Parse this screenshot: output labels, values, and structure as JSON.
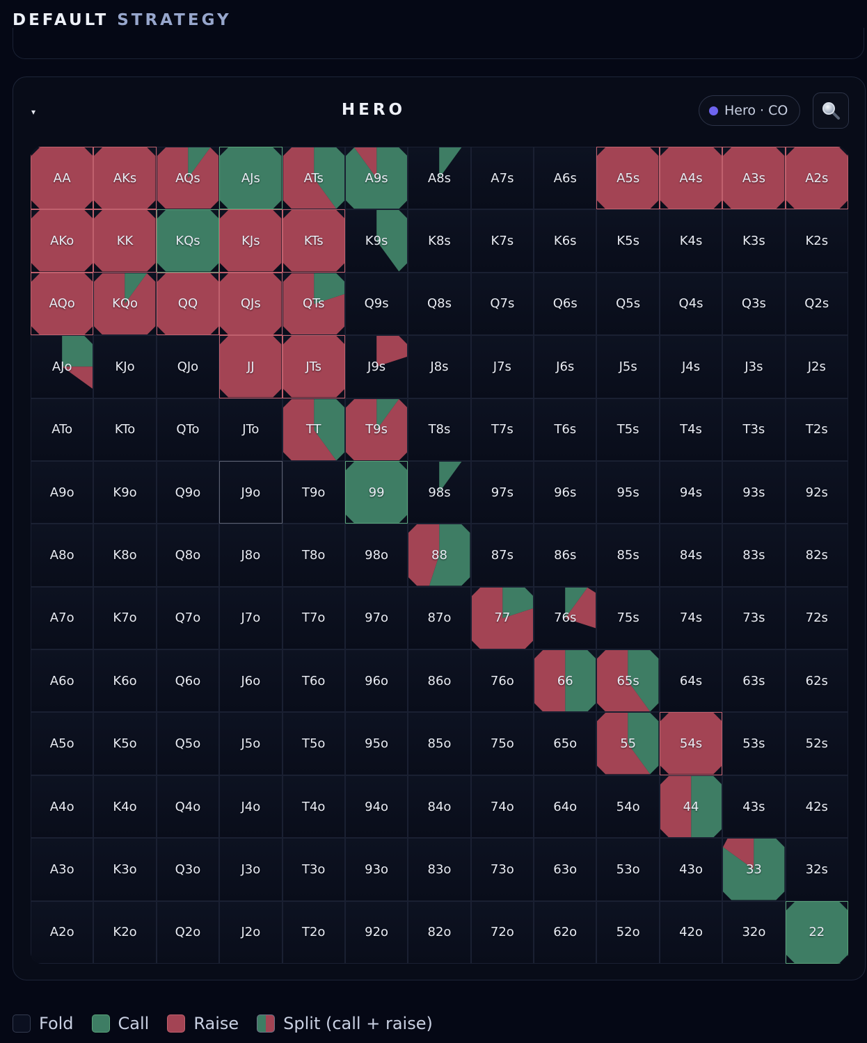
{
  "page": {
    "heading_word1": "DEFAULT",
    "heading_word2": "STRATEGY"
  },
  "panel": {
    "collapse_glyph": "▾",
    "title": "HERO",
    "player_chip": "Hero · CO",
    "player_color": "#6e64ee",
    "search_icon": "magnifying-glass-icon"
  },
  "colors": {
    "fold": "#0b1020",
    "call": "#3e7d64",
    "raise": "#a34454"
  },
  "matrix": {
    "rows": [
      [
        "AA",
        "AKs",
        "AQs",
        "AJs",
        "ATs",
        "A9s",
        "A8s",
        "A7s",
        "A6s",
        "A5s",
        "A4s",
        "A3s",
        "A2s"
      ],
      [
        "AKo",
        "KK",
        "KQs",
        "KJs",
        "KTs",
        "K9s",
        "K8s",
        "K7s",
        "K6s",
        "K5s",
        "K4s",
        "K3s",
        "K2s"
      ],
      [
        "AQo",
        "KQo",
        "QQ",
        "QJs",
        "QTs",
        "Q9s",
        "Q8s",
        "Q7s",
        "Q6s",
        "Q5s",
        "Q4s",
        "Q3s",
        "Q2s"
      ],
      [
        "AJo",
        "KJo",
        "QJo",
        "JJ",
        "JTs",
        "J9s",
        "J8s",
        "J7s",
        "J6s",
        "J5s",
        "J4s",
        "J3s",
        "J2s"
      ],
      [
        "ATo",
        "KTo",
        "QTo",
        "JTo",
        "TT",
        "T9s",
        "T8s",
        "T7s",
        "T6s",
        "T5s",
        "T4s",
        "T3s",
        "T2s"
      ],
      [
        "A9o",
        "K9o",
        "Q9o",
        "J9o",
        "T9o",
        "99",
        "98s",
        "97s",
        "96s",
        "95s",
        "94s",
        "93s",
        "92s"
      ],
      [
        "A8o",
        "K8o",
        "Q8o",
        "J8o",
        "T8o",
        "98o",
        "88",
        "87s",
        "86s",
        "85s",
        "84s",
        "83s",
        "82s"
      ],
      [
        "A7o",
        "K7o",
        "Q7o",
        "J7o",
        "T7o",
        "97o",
        "87o",
        "77",
        "76s",
        "75s",
        "74s",
        "73s",
        "72s"
      ],
      [
        "A6o",
        "K6o",
        "Q6o",
        "J6o",
        "T6o",
        "96o",
        "86o",
        "76o",
        "66",
        "65s",
        "64s",
        "63s",
        "62s"
      ],
      [
        "A5o",
        "K5o",
        "Q5o",
        "J5o",
        "T5o",
        "95o",
        "85o",
        "75o",
        "65o",
        "55",
        "54s",
        "53s",
        "52s"
      ],
      [
        "A4o",
        "K4o",
        "Q4o",
        "J4o",
        "T4o",
        "94o",
        "84o",
        "74o",
        "64o",
        "54o",
        "44",
        "43s",
        "42s"
      ],
      [
        "A3o",
        "K3o",
        "Q3o",
        "J3o",
        "T3o",
        "93o",
        "83o",
        "73o",
        "63o",
        "53o",
        "43o",
        "33",
        "32s"
      ],
      [
        "A2o",
        "K2o",
        "Q2o",
        "J2o",
        "T2o",
        "92o",
        "82o",
        "72o",
        "62o",
        "52o",
        "42o",
        "32o",
        "22"
      ]
    ],
    "selected_hand": "J9o",
    "strategy": {
      "AA": {
        "raise": 1.0
      },
      "AKs": {
        "raise": 1.0
      },
      "AQs": {
        "raise": 0.9,
        "call": 0.1
      },
      "AJs": {
        "call": 1.0
      },
      "ATs": {
        "raise": 0.6,
        "call": 0.4
      },
      "A9s": {
        "raise": 0.1,
        "call": 0.9
      },
      "A8s": {
        "call": 0.1
      },
      "A5s": {
        "raise": 1.0
      },
      "A4s": {
        "raise": 1.0
      },
      "A3s": {
        "raise": 1.0
      },
      "A2s": {
        "raise": 1.0
      },
      "AKo": {
        "raise": 1.0
      },
      "KK": {
        "raise": 1.0
      },
      "KQs": {
        "call": 1.0
      },
      "KJs": {
        "raise": 1.0
      },
      "KTs": {
        "raise": 1.0
      },
      "K9s": {
        "call": 0.4
      },
      "AQo": {
        "raise": 1.0
      },
      "KQo": {
        "raise": 0.9,
        "call": 0.1
      },
      "QQ": {
        "raise": 1.0
      },
      "QJs": {
        "raise": 1.0
      },
      "QTs": {
        "raise": 0.8,
        "call": 0.2
      },
      "AJo": {
        "call": 0.25,
        "raise": 0.1
      },
      "JJ": {
        "raise": 1.0
      },
      "JTs": {
        "raise": 1.0
      },
      "J9s": {
        "raise": 0.2
      },
      "TT": {
        "raise": 0.6,
        "call": 0.4
      },
      "T9s": {
        "raise": 0.9,
        "call": 0.1
      },
      "99": {
        "call": 1.0
      },
      "98s": {
        "call": 0.1
      },
      "88": {
        "raise": 0.45,
        "call": 0.55
      },
      "77": {
        "raise": 0.8,
        "call": 0.2
      },
      "76s": {
        "call": 0.1,
        "raise": 0.2
      },
      "66": {
        "raise": 0.5,
        "call": 0.5
      },
      "65s": {
        "raise": 0.6,
        "call": 0.4
      },
      "55": {
        "raise": 0.6,
        "call": 0.4
      },
      "54s": {
        "raise": 1.0
      },
      "44": {
        "raise": 0.5,
        "call": 0.5
      },
      "33": {
        "raise": 0.15,
        "call": 0.85
      },
      "22": {
        "call": 1.0
      }
    }
  },
  "legend": [
    {
      "key": "fold",
      "label": "Fold"
    },
    {
      "key": "call",
      "label": "Call"
    },
    {
      "key": "raise",
      "label": "Raise"
    },
    {
      "key": "split",
      "label": "Split (call + raise)"
    }
  ]
}
